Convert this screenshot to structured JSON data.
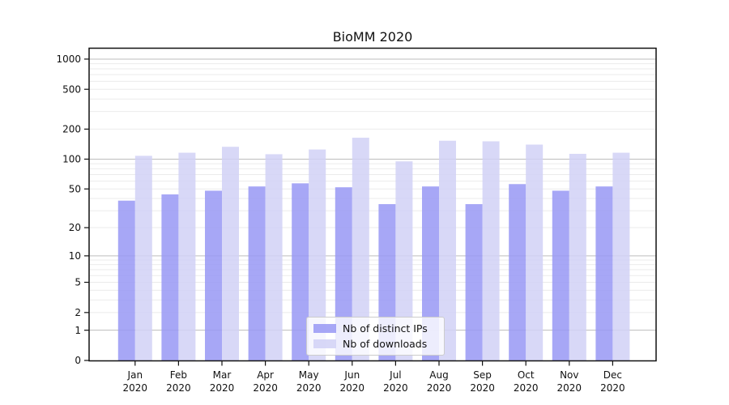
{
  "title": "BioMM 2020",
  "chart_data": {
    "type": "bar",
    "title": "BioMM 2020",
    "categories": [
      "Jan",
      "Feb",
      "Mar",
      "Apr",
      "May",
      "Jun",
      "Jul",
      "Aug",
      "Sep",
      "Oct",
      "Nov",
      "Dec"
    ],
    "year_label": "2020",
    "series": [
      {
        "name": "Nb of distinct IPs",
        "color": "#9898f5",
        "values": [
          38,
          44,
          48,
          53,
          57,
          52,
          35,
          53,
          35,
          56,
          48,
          53
        ]
      },
      {
        "name": "Nb of downloads",
        "color": "#d1d1f6",
        "values": [
          108,
          116,
          133,
          112,
          125,
          164,
          95,
          153,
          151,
          140,
          113,
          116
        ]
      }
    ],
    "xlabel": "",
    "ylabel": "",
    "yscale": "log1p",
    "ytick_labels": [
      0,
      1,
      2,
      5,
      10,
      20,
      50,
      100,
      200,
      500,
      1000
    ],
    "ylim": [
      0,
      1300
    ],
    "grid": true,
    "legend_position": "lower center",
    "axis_color": "#111111",
    "major_grid_color": "#bdbdbd",
    "minor_grid_color": "#ebebeb",
    "bar_opacity": 0.85
  }
}
